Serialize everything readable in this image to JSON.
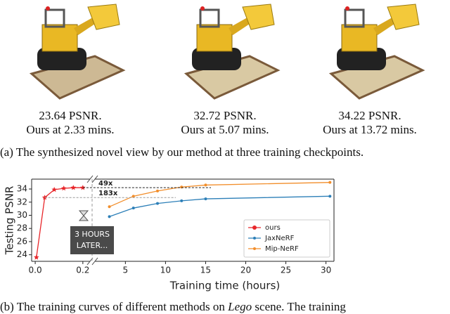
{
  "views": [
    {
      "psnr": "23.64 PSNR.",
      "time": "Ours at 2.33 mins."
    },
    {
      "psnr": "32.72 PSNR.",
      "time": "Ours at 5.07 mins."
    },
    {
      "psnr": "34.22 PSNR.",
      "time": "Ours at 13.72 mins."
    }
  ],
  "caption_a": "(a) The synthesized novel view by our method at three training checkpoints.",
  "caption_b": [
    "(b) The training curves of different methods on ",
    "Lego",
    " scene. The training"
  ],
  "chart_data": [
    {
      "type": "line",
      "ylabel": "Testing PSNR",
      "xlim": [
        -0.015,
        0.23
      ],
      "xticks": [
        {
          "value": 0,
          "label": "0.0"
        },
        0.2
      ],
      "ylim": [
        23,
        35.5
      ],
      "yticks": [
        24,
        26,
        28,
        30,
        32,
        34
      ],
      "series": [
        {
          "name": "ours",
          "color": "#e8262a",
          "marker": "star",
          "x": [
            0.005,
            0.04,
            0.08,
            0.12,
            0.16,
            0.2
          ],
          "values": [
            23.6,
            32.7,
            33.9,
            34.1,
            34.2,
            34.2
          ]
        }
      ]
    },
    {
      "type": "line",
      "xlabel": "Training time (hours)",
      "xlim": [
        1.2,
        31
      ],
      "xticks": [
        5,
        10,
        15,
        20,
        25,
        30
      ],
      "ylim": [
        23,
        35.5
      ],
      "legend": "lower right",
      "annotations": [
        "49x",
        "183x"
      ],
      "break_note": [
        "3 HOURS",
        "LATER..."
      ],
      "series": [
        {
          "name": "JaxNeRF",
          "color": "#2c7fb8",
          "marker": "dot",
          "x": [
            3,
            6,
            9,
            12,
            15,
            30.5
          ],
          "values": [
            29.8,
            31.1,
            31.8,
            32.2,
            32.5,
            32.9
          ]
        },
        {
          "name": "Mip-NeRF",
          "color": "#f28e2b",
          "marker": "dot",
          "x": [
            3,
            6,
            9,
            12,
            15,
            30.5
          ],
          "values": [
            31.3,
            32.9,
            33.7,
            34.3,
            34.6,
            35.0
          ]
        }
      ]
    }
  ]
}
